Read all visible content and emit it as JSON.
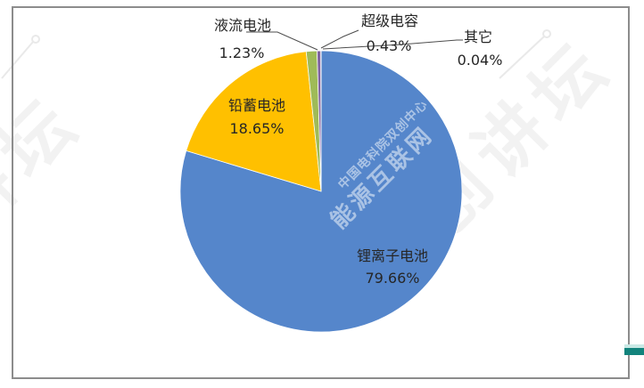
{
  "chart_data": {
    "type": "pie",
    "title": "",
    "legend": "none",
    "start_angle_deg": 0,
    "direction": "clockwise",
    "labels_style": "category name + percent value; leader lines point to small slices",
    "slices": [
      {
        "label": "锂离子电池",
        "value": 79.66,
        "pct_label": "79.66%",
        "color": "#5586CB"
      },
      {
        "label": "铅蓄电池",
        "value": 18.65,
        "pct_label": "18.65%",
        "color": "#FFC000"
      },
      {
        "label": "液流电池",
        "value": 1.23,
        "pct_label": "1.23%",
        "color": "#9FBB58"
      },
      {
        "label": "超级电容",
        "value": 0.43,
        "pct_label": "0.43%",
        "color": "#8064A2"
      },
      {
        "label": "其它",
        "value": 0.04,
        "pct_label": "0.04%",
        "color": "#4BACC6"
      }
    ]
  },
  "watermarks": {
    "corner_diagonal": "双创讲坛",
    "corner_diagonal_partial": "双创讲坛",
    "main_diagonal": "能源互联网",
    "sub_diagonal": "中国电科院双创中心"
  },
  "frame": {
    "border_color": "#8C8C8C",
    "accent_bar_color": "#12837C",
    "accent_bar_light_color": "#C9E9E5",
    "background_color": "#FFFFFF"
  }
}
